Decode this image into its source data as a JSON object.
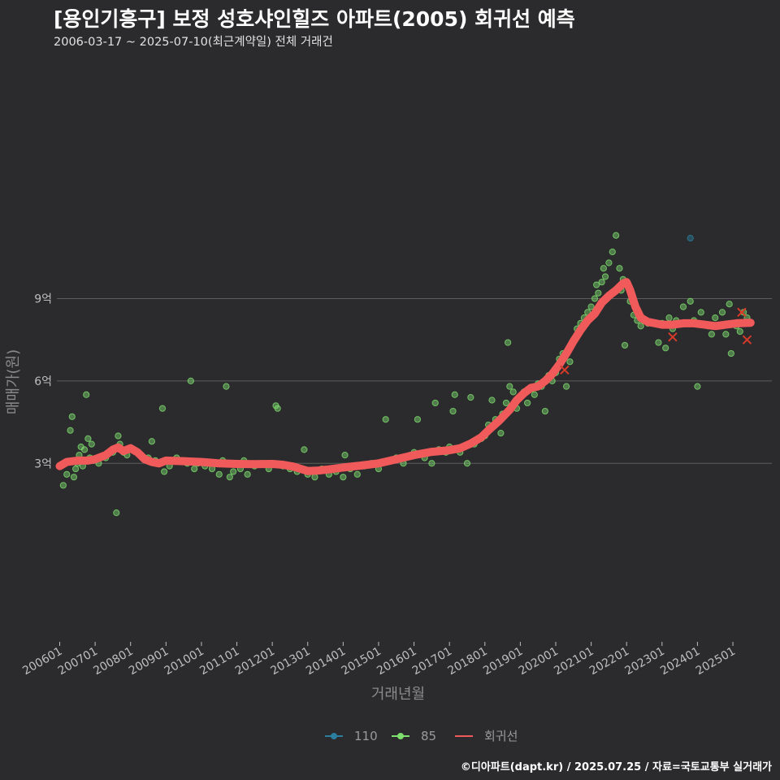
{
  "header": {
    "title": "[용인기흥구] 보정 성호샤인힐즈 아파트(2005) 회귀선 예측",
    "subtitle": "2006-03-17 ~ 2025-07-10(최근계약일) 전체 거래건"
  },
  "footer": {
    "credit": "©디아파트(dapt.kr) / 2025.07.25 / 자료=국토교통부 실거래가"
  },
  "colors": {
    "background": "#2b2b2d",
    "grid": "#5c5c5c",
    "s110": "#2a7f9e",
    "s85": "#7ede6e",
    "regression": "#f05a5a"
  },
  "chart_data": {
    "type": "scatter",
    "title": "[용인기흥구] 보정 성호샤인힐즈 아파트(2005) 회귀선 예측",
    "xlabel": "거래년월",
    "ylabel": "매매가(원)",
    "xlim": [
      2005.92,
      2026.1
    ],
    "ylim": [
      -3.5,
      17.8
    ],
    "grid": true,
    "legend_position": "bottom",
    "x_ticks": [
      {
        "value": 2006.0,
        "label": "200601"
      },
      {
        "value": 2007.0,
        "label": "200701"
      },
      {
        "value": 2008.0,
        "label": "200801"
      },
      {
        "value": 2009.0,
        "label": "200901"
      },
      {
        "value": 2010.0,
        "label": "201001"
      },
      {
        "value": 2011.0,
        "label": "201101"
      },
      {
        "value": 2012.0,
        "label": "201201"
      },
      {
        "value": 2013.0,
        "label": "201301"
      },
      {
        "value": 2014.0,
        "label": "201401"
      },
      {
        "value": 2015.0,
        "label": "201501"
      },
      {
        "value": 2016.0,
        "label": "201601"
      },
      {
        "value": 2017.0,
        "label": "201701"
      },
      {
        "value": 2018.0,
        "label": "201801"
      },
      {
        "value": 2019.0,
        "label": "201901"
      },
      {
        "value": 2020.0,
        "label": "202001"
      },
      {
        "value": 2021.0,
        "label": "202101"
      },
      {
        "value": 2022.0,
        "label": "202201"
      },
      {
        "value": 2023.0,
        "label": "202301"
      },
      {
        "value": 2024.0,
        "label": "202401"
      },
      {
        "value": 2025.0,
        "label": "202501"
      }
    ],
    "y_ticks": [
      {
        "value": 3,
        "label": "3억"
      },
      {
        "value": 6,
        "label": "6억"
      },
      {
        "value": 9,
        "label": "9억"
      }
    ],
    "legend": [
      {
        "key": "s110",
        "label": "110",
        "kind": "point"
      },
      {
        "key": "s85",
        "label": "85",
        "kind": "point"
      },
      {
        "key": "regression",
        "label": "회귀선",
        "kind": "line"
      }
    ],
    "series": [
      {
        "name": "110",
        "key": "s110",
        "points": [
          [
            2023.8,
            11.2
          ]
        ]
      },
      {
        "name": "85",
        "key": "s85",
        "points": [
          [
            2006.1,
            2.2
          ],
          [
            2006.2,
            2.6
          ],
          [
            2006.3,
            4.2
          ],
          [
            2006.35,
            4.7
          ],
          [
            2006.4,
            2.5
          ],
          [
            2006.45,
            2.8
          ],
          [
            2006.5,
            3.0
          ],
          [
            2006.55,
            3.3
          ],
          [
            2006.6,
            3.6
          ],
          [
            2006.65,
            2.9
          ],
          [
            2006.7,
            3.5
          ],
          [
            2006.75,
            5.5
          ],
          [
            2006.8,
            3.9
          ],
          [
            2006.85,
            3.2
          ],
          [
            2006.9,
            3.7
          ],
          [
            2006.95,
            3.1
          ],
          [
            2007.1,
            3.0
          ],
          [
            2007.3,
            3.2
          ],
          [
            2007.5,
            3.4
          ],
          [
            2007.6,
            1.2
          ],
          [
            2007.65,
            4.0
          ],
          [
            2007.7,
            3.7
          ],
          [
            2007.8,
            3.4
          ],
          [
            2007.9,
            3.3
          ],
          [
            2008.1,
            3.5
          ],
          [
            2008.3,
            3.3
          ],
          [
            2008.5,
            3.2
          ],
          [
            2008.6,
            3.8
          ],
          [
            2008.7,
            3.1
          ],
          [
            2008.8,
            3.0
          ],
          [
            2008.9,
            5.0
          ],
          [
            2008.95,
            2.7
          ],
          [
            2009.1,
            2.9
          ],
          [
            2009.3,
            3.2
          ],
          [
            2009.5,
            3.1
          ],
          [
            2009.6,
            3.0
          ],
          [
            2009.7,
            6.0
          ],
          [
            2009.8,
            2.8
          ],
          [
            2009.9,
            3.0
          ],
          [
            2010.1,
            2.9
          ],
          [
            2010.3,
            2.8
          ],
          [
            2010.5,
            2.6
          ],
          [
            2010.6,
            3.1
          ],
          [
            2010.7,
            5.8
          ],
          [
            2010.8,
            2.5
          ],
          [
            2010.9,
            2.7
          ],
          [
            2011.1,
            2.8
          ],
          [
            2011.2,
            3.1
          ],
          [
            2011.3,
            2.6
          ],
          [
            2011.5,
            2.9
          ],
          [
            2011.7,
            3.0
          ],
          [
            2011.9,
            2.8
          ],
          [
            2012.0,
            3.0
          ],
          [
            2012.1,
            5.1
          ],
          [
            2012.15,
            5.0
          ],
          [
            2012.3,
            2.9
          ],
          [
            2012.5,
            2.8
          ],
          [
            2012.7,
            2.7
          ],
          [
            2012.9,
            3.5
          ],
          [
            2013.0,
            2.6
          ],
          [
            2013.2,
            2.5
          ],
          [
            2013.4,
            2.8
          ],
          [
            2013.6,
            2.6
          ],
          [
            2013.8,
            2.7
          ],
          [
            2014.0,
            2.5
          ],
          [
            2014.05,
            3.3
          ],
          [
            2014.2,
            2.8
          ],
          [
            2014.4,
            2.6
          ],
          [
            2014.6,
            2.9
          ],
          [
            2014.8,
            3.0
          ],
          [
            2015.0,
            2.8
          ],
          [
            2015.2,
            4.6
          ],
          [
            2015.3,
            3.1
          ],
          [
            2015.5,
            3.2
          ],
          [
            2015.7,
            3.0
          ],
          [
            2015.9,
            3.3
          ],
          [
            2016.0,
            3.4
          ],
          [
            2016.1,
            4.6
          ],
          [
            2016.3,
            3.2
          ],
          [
            2016.5,
            3.0
          ],
          [
            2016.6,
            5.2
          ],
          [
            2016.7,
            3.5
          ],
          [
            2016.9,
            3.4
          ],
          [
            2017.0,
            3.6
          ],
          [
            2017.1,
            4.9
          ],
          [
            2017.15,
            5.5
          ],
          [
            2017.3,
            3.4
          ],
          [
            2017.5,
            3.0
          ],
          [
            2017.6,
            5.4
          ],
          [
            2017.7,
            3.7
          ],
          [
            2017.9,
            3.9
          ],
          [
            2018.0,
            4.0
          ],
          [
            2018.1,
            4.4
          ],
          [
            2018.2,
            5.3
          ],
          [
            2018.3,
            4.6
          ],
          [
            2018.45,
            4.1
          ],
          [
            2018.5,
            4.8
          ],
          [
            2018.6,
            5.2
          ],
          [
            2018.65,
            7.4
          ],
          [
            2018.7,
            5.8
          ],
          [
            2018.8,
            5.6
          ],
          [
            2018.9,
            5.0
          ],
          [
            2019.0,
            5.4
          ],
          [
            2019.1,
            5.6
          ],
          [
            2019.2,
            5.2
          ],
          [
            2019.3,
            5.7
          ],
          [
            2019.4,
            5.5
          ],
          [
            2019.5,
            5.9
          ],
          [
            2019.6,
            5.8
          ],
          [
            2019.7,
            4.9
          ],
          [
            2019.8,
            6.2
          ],
          [
            2019.9,
            6.0
          ],
          [
            2020.0,
            6.3
          ],
          [
            2020.1,
            6.8
          ],
          [
            2020.2,
            7.0
          ],
          [
            2020.3,
            5.8
          ],
          [
            2020.4,
            6.7
          ],
          [
            2020.5,
            7.5
          ],
          [
            2020.6,
            7.9
          ],
          [
            2020.7,
            8.1
          ],
          [
            2020.8,
            8.3
          ],
          [
            2020.9,
            8.5
          ],
          [
            2021.0,
            8.7
          ],
          [
            2021.1,
            9.0
          ],
          [
            2021.15,
            9.5
          ],
          [
            2021.2,
            9.2
          ],
          [
            2021.3,
            9.6
          ],
          [
            2021.35,
            10.1
          ],
          [
            2021.4,
            9.8
          ],
          [
            2021.5,
            10.3
          ],
          [
            2021.6,
            10.7
          ],
          [
            2021.7,
            11.3
          ],
          [
            2021.8,
            10.1
          ],
          [
            2021.85,
            9.3
          ],
          [
            2021.9,
            9.7
          ],
          [
            2021.95,
            7.3
          ],
          [
            2022.1,
            8.9
          ],
          [
            2022.2,
            8.4
          ],
          [
            2022.3,
            8.2
          ],
          [
            2022.4,
            8.0
          ],
          [
            2022.6,
            8.1
          ],
          [
            2022.9,
            7.4
          ],
          [
            2023.0,
            8.1
          ],
          [
            2023.1,
            7.2
          ],
          [
            2023.2,
            8.3
          ],
          [
            2023.3,
            7.9
          ],
          [
            2023.4,
            8.2
          ],
          [
            2023.6,
            8.7
          ],
          [
            2023.8,
            8.9
          ],
          [
            2023.9,
            8.2
          ],
          [
            2024.0,
            5.8
          ],
          [
            2024.1,
            8.5
          ],
          [
            2024.3,
            8.0
          ],
          [
            2024.4,
            7.7
          ],
          [
            2024.5,
            8.3
          ],
          [
            2024.7,
            8.5
          ],
          [
            2024.8,
            7.7
          ],
          [
            2024.9,
            8.8
          ],
          [
            2024.95,
            7.0
          ],
          [
            2025.1,
            8.0
          ],
          [
            2025.2,
            7.8
          ],
          [
            2025.3,
            8.5
          ],
          [
            2025.4,
            8.3
          ]
        ]
      }
    ],
    "regression": {
      "name": "회귀선",
      "key": "regression",
      "points": [
        [
          2006.0,
          2.9
        ],
        [
          2006.2,
          3.05
        ],
        [
          2006.5,
          3.1
        ],
        [
          2006.8,
          3.1
        ],
        [
          2007.0,
          3.15
        ],
        [
          2007.3,
          3.3
        ],
        [
          2007.5,
          3.5
        ],
        [
          2007.65,
          3.58
        ],
        [
          2007.8,
          3.45
        ],
        [
          2008.0,
          3.55
        ],
        [
          2008.2,
          3.4
        ],
        [
          2008.4,
          3.15
        ],
        [
          2008.6,
          3.05
        ],
        [
          2008.8,
          3.0
        ],
        [
          2009.0,
          3.1
        ],
        [
          2009.5,
          3.08
        ],
        [
          2010.0,
          3.05
        ],
        [
          2010.5,
          3.0
        ],
        [
          2011.0,
          2.98
        ],
        [
          2011.5,
          2.97
        ],
        [
          2012.0,
          2.98
        ],
        [
          2012.3,
          2.95
        ],
        [
          2012.6,
          2.88
        ],
        [
          2012.8,
          2.8
        ],
        [
          2013.0,
          2.72
        ],
        [
          2013.3,
          2.74
        ],
        [
          2013.6,
          2.78
        ],
        [
          2014.0,
          2.85
        ],
        [
          2014.5,
          2.92
        ],
        [
          2015.0,
          3.0
        ],
        [
          2015.5,
          3.15
        ],
        [
          2016.0,
          3.3
        ],
        [
          2016.5,
          3.42
        ],
        [
          2017.0,
          3.48
        ],
        [
          2017.3,
          3.55
        ],
        [
          2017.6,
          3.72
        ],
        [
          2017.9,
          3.95
        ],
        [
          2018.1,
          4.2
        ],
        [
          2018.4,
          4.55
        ],
        [
          2018.7,
          4.95
        ],
        [
          2018.9,
          5.3
        ],
        [
          2019.1,
          5.55
        ],
        [
          2019.3,
          5.75
        ],
        [
          2019.5,
          5.8
        ],
        [
          2019.7,
          6.0
        ],
        [
          2019.9,
          6.25
        ],
        [
          2020.1,
          6.6
        ],
        [
          2020.3,
          7.0
        ],
        [
          2020.5,
          7.45
        ],
        [
          2020.7,
          7.85
        ],
        [
          2020.9,
          8.2
        ],
        [
          2021.1,
          8.45
        ],
        [
          2021.3,
          8.85
        ],
        [
          2021.5,
          9.1
        ],
        [
          2021.7,
          9.3
        ],
        [
          2021.9,
          9.55
        ],
        [
          2022.0,
          9.6
        ],
        [
          2022.1,
          9.3
        ],
        [
          2022.25,
          8.7
        ],
        [
          2022.4,
          8.3
        ],
        [
          2022.6,
          8.15
        ],
        [
          2022.8,
          8.1
        ],
        [
          2023.0,
          8.05
        ],
        [
          2023.3,
          8.05
        ],
        [
          2023.6,
          8.1
        ],
        [
          2023.9,
          8.1
        ],
        [
          2024.2,
          8.05
        ],
        [
          2024.5,
          8.0
        ],
        [
          2024.8,
          8.05
        ],
        [
          2025.1,
          8.1
        ],
        [
          2025.5,
          8.12
        ]
      ]
    },
    "highlighted_points": [
      [
        2023.3,
        7.6
      ],
      [
        2025.25,
        8.5
      ],
      [
        2025.4,
        7.5
      ],
      [
        2020.25,
        6.4
      ]
    ]
  }
}
